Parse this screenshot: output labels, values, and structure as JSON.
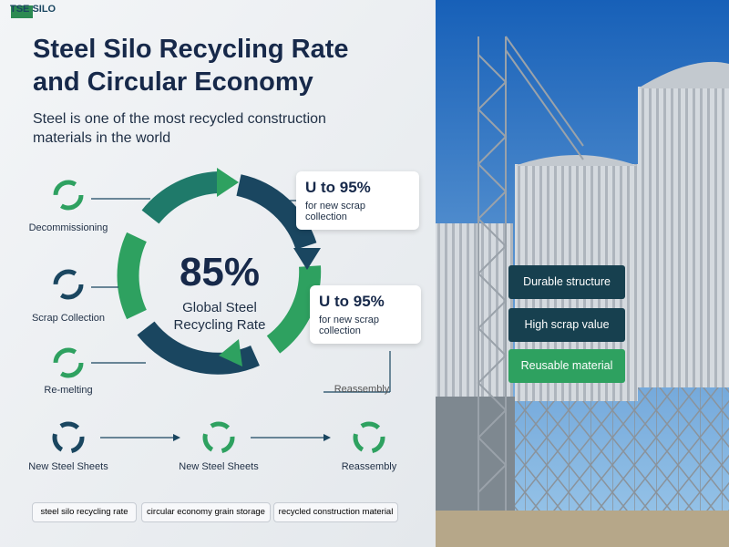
{
  "logo": "TSE SILO",
  "header": {
    "title": "Steel Silo Recycling Rate and Circular Economy",
    "subtitle": "Steel is one of the most recycled construction materials in the world"
  },
  "center": {
    "value": "85%",
    "label": "Global Steel Recycling Rate"
  },
  "callouts": [
    {
      "text": "U to 95%",
      "note": "for new scrap collection"
    },
    {
      "text": "U to 95%",
      "note": "for new scrap collection"
    }
  ],
  "steps": [
    "Decommissioning",
    "Scrap Collection",
    "Re-melting"
  ],
  "cycle_label": "Reassembly",
  "flow": [
    "New Steel Sheets",
    "New Steel Sheets",
    "Reassembly"
  ],
  "tags": [
    "steel silo recycling rate",
    "circular economy grain storage",
    "recycled construction material"
  ],
  "photo_labels": [
    "Durable structure",
    "High scrap value",
    "Reusable material"
  ]
}
